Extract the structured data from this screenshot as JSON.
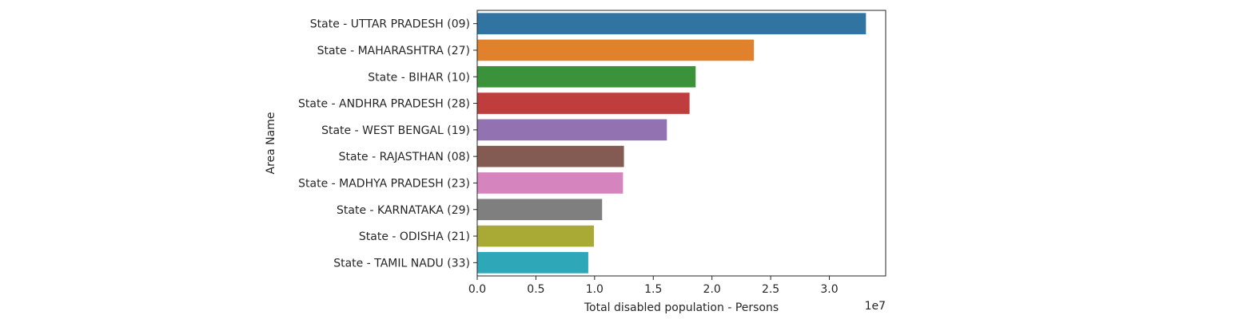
{
  "chart_data": {
    "type": "bar",
    "orientation": "horizontal",
    "categories": [
      "State - UTTAR PRADESH (09)",
      "State - MAHARASHTRA (27)",
      "State - BIHAR (10)",
      "State - ANDHRA PRADESH (28)",
      "State - WEST BENGAL (19)",
      "State - RAJASTHAN (08)",
      "State - MADHYA PRADESH (23)",
      "State - KARNATAKA (29)",
      "State - ODISHA (21)",
      "State - TAMIL NADU (33)"
    ],
    "values": [
      33120000,
      23570000,
      18610000,
      18090000,
      16160000,
      12500000,
      12420000,
      10640000,
      9940000,
      9460000
    ],
    "colors": [
      "#3274a1",
      "#e1812c",
      "#3a923a",
      "#c03d3e",
      "#9372b2",
      "#845b53",
      "#d684bd",
      "#7f7f7f",
      "#a9aa35",
      "#2ea8b8"
    ],
    "xlabel": "Total disabled population - Persons",
    "ylabel": "Area Name",
    "x_exponent_label": "1e7",
    "xticks": [
      0,
      5000000,
      10000000,
      15000000,
      20000000,
      25000000,
      30000000
    ],
    "xtick_labels": [
      "0.0",
      "0.5",
      "1.0",
      "1.5",
      "2.0",
      "2.5",
      "3.0"
    ],
    "xlim": [
      0,
      34800000
    ],
    "grid": false,
    "legend": "none"
  }
}
